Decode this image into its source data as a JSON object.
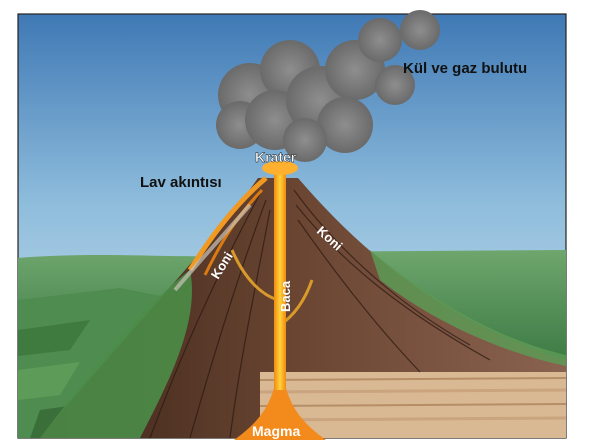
{
  "labels": {
    "ash_cloud": "Kül ve gaz bulutu",
    "crater": "Krater",
    "lava_flow": "Lav akıntısı",
    "cone_left": "Koni",
    "cone_right": "Koni",
    "vent": "Baca",
    "magma": "Magma"
  }
}
